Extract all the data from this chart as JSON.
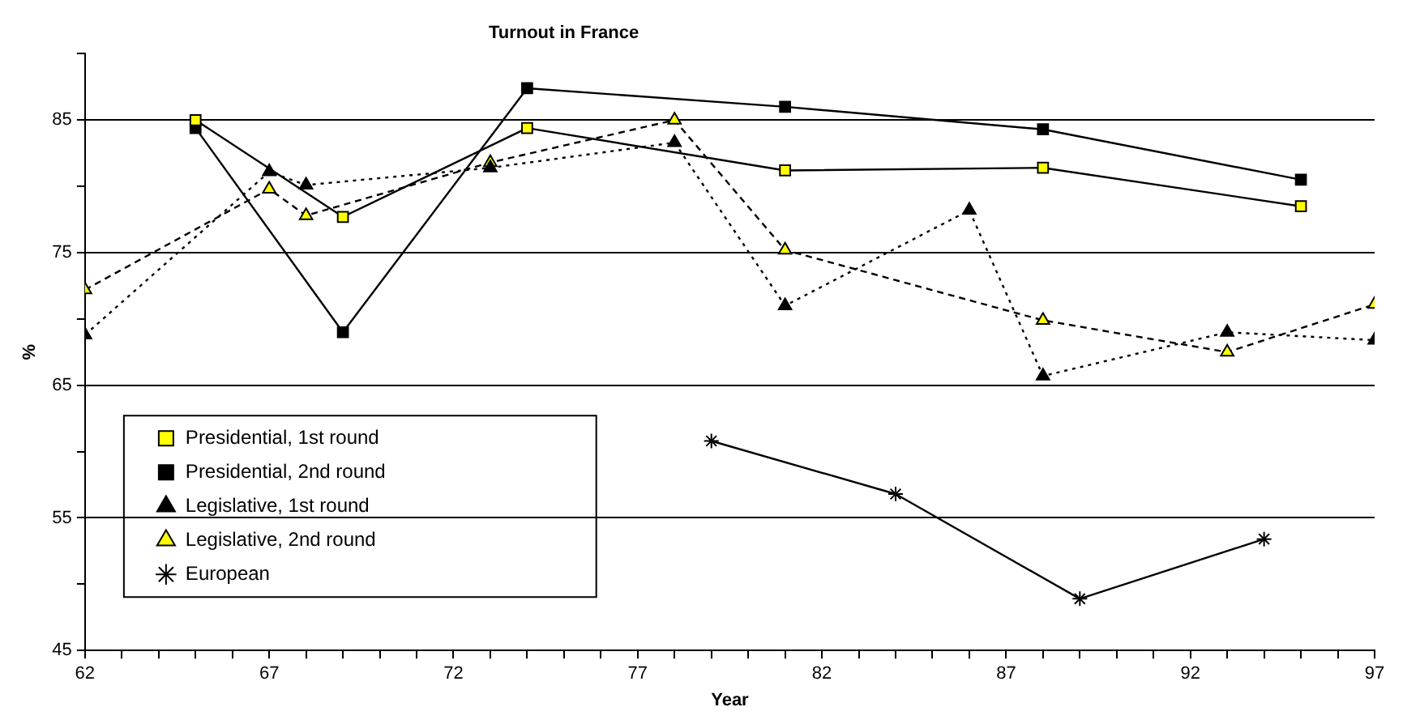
{
  "chart_data": {
    "type": "line",
    "title": "Turnout in France",
    "xlabel": "Year",
    "ylabel": "%",
    "xlim": [
      62,
      97
    ],
    "xticks": [
      62,
      {
        "value": 63,
        "label": null
      },
      {
        "value": 64,
        "label": null
      },
      {
        "value": 65,
        "label": null
      },
      {
        "value": 66,
        "label": null
      },
      67,
      {
        "value": 68,
        "label": null
      },
      {
        "value": 69,
        "label": null
      },
      {
        "value": 70,
        "label": null
      },
      {
        "value": 71,
        "label": null
      },
      72,
      {
        "value": 73,
        "label": null
      },
      {
        "value": 74,
        "label": null
      },
      {
        "value": 75,
        "label": null
      },
      {
        "value": 76,
        "label": null
      },
      77,
      {
        "value": 78,
        "label": null
      },
      {
        "value": 79,
        "label": null
      },
      {
        "value": 80,
        "label": null
      },
      {
        "value": 81,
        "label": null
      },
      82,
      {
        "value": 83,
        "label": null
      },
      {
        "value": 84,
        "label": null
      },
      {
        "value": 85,
        "label": null
      },
      {
        "value": 86,
        "label": null
      },
      87,
      {
        "value": 88,
        "label": null
      },
      {
        "value": 89,
        "label": null
      },
      {
        "value": 90,
        "label": null
      },
      {
        "value": 91,
        "label": null
      },
      92,
      {
        "value": 93,
        "label": null
      },
      {
        "value": 94,
        "label": null
      },
      {
        "value": 95,
        "label": null
      },
      {
        "value": 96,
        "label": null
      },
      97
    ],
    "ylim": [
      45,
      90
    ],
    "yticks": [
      45,
      {
        "value": 50,
        "label": null
      },
      55,
      {
        "value": 60,
        "label": null
      },
      65,
      {
        "value": 70,
        "label": null
      },
      75,
      {
        "value": 80,
        "label": null
      },
      85,
      {
        "value": 90,
        "label": null
      }
    ],
    "grid": "y",
    "legend": "bottom left",
    "series": [
      {
        "name": "Presidential, 1st round",
        "color": "#ffff00",
        "marker": "square",
        "line_style": "solid",
        "x": [
          65,
          69,
          74,
          81,
          88,
          95
        ],
        "values": [
          85.0,
          77.7,
          84.4,
          81.2,
          81.4,
          78.5
        ]
      },
      {
        "name": "Presidential, 2nd round",
        "color": "#000000",
        "marker": "square",
        "line_style": "solid",
        "x": [
          65,
          69,
          74,
          81,
          88,
          95
        ],
        "values": [
          84.4,
          69.0,
          87.4,
          86.0,
          84.3,
          80.5
        ]
      },
      {
        "name": "Legislative, 1st round",
        "color": "#000000",
        "marker": "triangle",
        "line_style": "dotted",
        "x": [
          62,
          67,
          68,
          73,
          78,
          81,
          86,
          88,
          93,
          97
        ],
        "values": [
          68.8,
          81.1,
          80.1,
          81.4,
          83.3,
          71.0,
          78.2,
          65.7,
          69.0,
          68.4
        ]
      },
      {
        "name": "Legislative, 2nd round",
        "color": "#ffff00",
        "marker": "triangle",
        "line_style": "dashed",
        "x": [
          62,
          67,
          68,
          73,
          78,
          81,
          88,
          93,
          97
        ],
        "values": [
          72.2,
          79.8,
          77.8,
          81.8,
          85.0,
          75.2,
          69.9,
          67.5,
          71.1
        ]
      },
      {
        "name": "European",
        "color": "#000000",
        "marker": "cross",
        "line_style": "solid",
        "x": [
          79,
          84,
          89,
          94
        ],
        "values": [
          60.8,
          56.8,
          48.9,
          53.4
        ]
      }
    ]
  }
}
